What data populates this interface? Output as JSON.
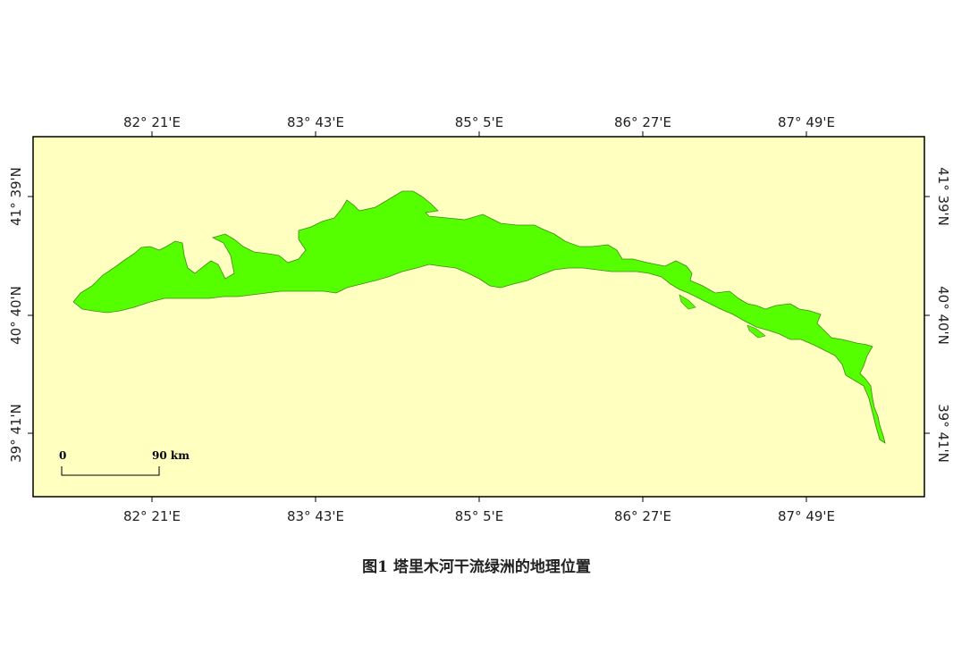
{
  "map": {
    "background_color": "#ffffc0",
    "oasis_color": "#55ff00",
    "frame_color": "#000000",
    "lon_ticks": [
      "82° 21'E",
      "83° 43'E",
      "85° 5'E",
      "86° 27'E",
      "87° 49'E"
    ],
    "lat_ticks": [
      "41° 39'N",
      "40° 40'N",
      "39° 41'N"
    ],
    "scale_bar": {
      "start_label": "0",
      "end_label": "90 km"
    }
  },
  "caption": "图1  塔里木河干流绿洲的地理位置"
}
